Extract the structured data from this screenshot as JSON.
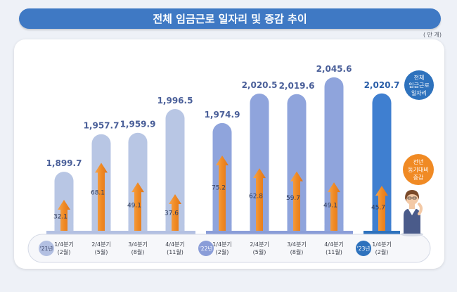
{
  "title": "전체 임금근로 일자리 및 증감 추이",
  "unit": "( 만 개)",
  "legend": {
    "total_label": "전체\n임금근로\n일자리",
    "change_label": "전년\n동기대비\n증감",
    "total_color": "#2e72bd",
    "change_color": "#f08a24"
  },
  "chart_data": {
    "type": "bar",
    "title": "전체 임금근로 일자리 및 증감 추이",
    "unit": "( 만 개)",
    "years": [
      {
        "label": "'21년",
        "count": 4
      },
      {
        "label": "'22년",
        "count": 4
      },
      {
        "label": "'23년",
        "count": 1
      }
    ],
    "categories": [
      [
        "1/4분기",
        "(2월)"
      ],
      [
        "2/4분기",
        "(5월)"
      ],
      [
        "3/4분기",
        "(8월)"
      ],
      [
        "4/4분기",
        "(11월)"
      ],
      [
        "1/4분기",
        "(2월)"
      ],
      [
        "2/4분기",
        "(5월)"
      ],
      [
        "3/4분기",
        "(8월)"
      ],
      [
        "4/4분기",
        "(11월)"
      ],
      [
        "1/4분기",
        "(2월)"
      ]
    ],
    "series": [
      {
        "name": "전체 임금근로 일자리",
        "values": [
          1899.7,
          1957.7,
          1959.9,
          1996.5,
          1974.9,
          2020.5,
          2019.6,
          2045.6,
          2020.7
        ]
      },
      {
        "name": "전년 동기대비 증감",
        "values": [
          32.1,
          68.1,
          49.1,
          37.6,
          75.2,
          62.8,
          59.7,
          49.1,
          45.7
        ]
      }
    ],
    "value_labels": [
      "1,899.7",
      "1,957.7",
      "1,959.9",
      "1,996.5",
      "1,974.9",
      "2,020.5",
      "2,019.6",
      "2,045.6",
      "2,020.7"
    ],
    "change_labels": [
      "32.1",
      "68.1",
      "49.1",
      "37.6",
      "75.2",
      "62.8",
      "59.7",
      "49.1",
      "45.7"
    ],
    "bar_colors": [
      "#b8c6e4",
      "#b8c6e4",
      "#b8c6e4",
      "#b8c6e4",
      "#8fa4dc",
      "#8fa4dc",
      "#8fa4dc",
      "#8fa4dc",
      "#3f7fd0"
    ],
    "year_badge_colors": [
      "#b3c0e2",
      "#8a9dd8",
      "#2e72bd"
    ],
    "arrow_color": "#f08a24"
  }
}
